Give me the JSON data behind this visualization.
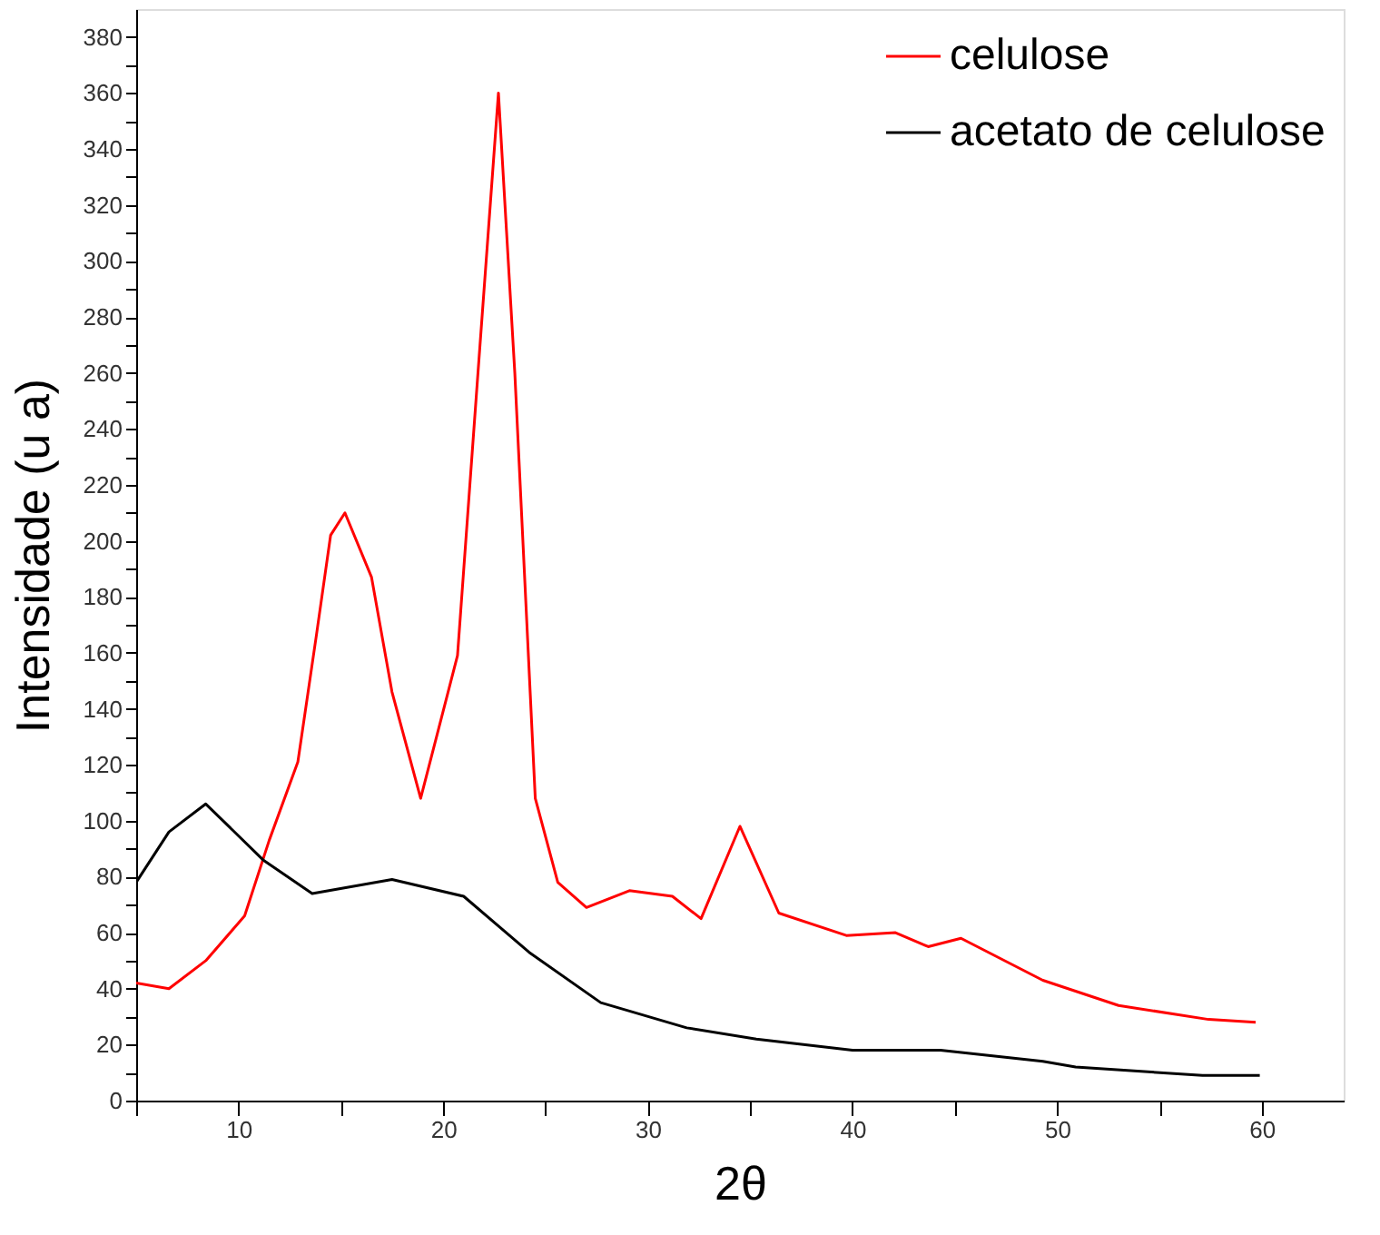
{
  "chart_data": {
    "type": "line",
    "xlabel": "2θ",
    "ylabel": "Intensidade (u a)",
    "xlim": [
      5,
      64
    ],
    "ylim": [
      0,
      390
    ],
    "xticks": [
      {
        "value": 5,
        "label": null
      },
      10,
      {
        "value": 15,
        "label": null
      },
      20,
      {
        "value": 25,
        "label": null
      },
      30,
      {
        "value": 35,
        "label": null
      },
      40,
      {
        "value": 45,
        "label": null
      },
      50,
      {
        "value": 55,
        "label": null
      },
      60
    ],
    "yticks": [
      0,
      {
        "value": 10,
        "label": null
      },
      20,
      {
        "value": 30,
        "label": null
      },
      40,
      {
        "value": 50,
        "label": null
      },
      60,
      {
        "value": 70,
        "label": null
      },
      80,
      {
        "value": 90,
        "label": null
      },
      100,
      {
        "value": 110,
        "label": null
      },
      120,
      {
        "value": 130,
        "label": null
      },
      140,
      {
        "value": 150,
        "label": null
      },
      160,
      {
        "value": 170,
        "label": null
      },
      180,
      {
        "value": 190,
        "label": null
      },
      200,
      {
        "value": 210,
        "label": null
      },
      220,
      {
        "value": 230,
        "label": null
      },
      240,
      {
        "value": 250,
        "label": null
      },
      260,
      {
        "value": 270,
        "label": null
      },
      280,
      {
        "value": 290,
        "label": null
      },
      300,
      {
        "value": 310,
        "label": null
      },
      320,
      {
        "value": 330,
        "label": null
      },
      340,
      {
        "value": 350,
        "label": null
      },
      360,
      {
        "value": 370,
        "label": null
      },
      380
    ],
    "grid": false,
    "legend": "top right",
    "marker": "none",
    "line_style": "solid",
    "series": [
      {
        "name": "celulose",
        "color": "#ff0000",
        "x": [
          5,
          6.6,
          8.4,
          10.3,
          11.5,
          12.9,
          13.8,
          14.5,
          15.2,
          16.5,
          17.5,
          18.9,
          20.7,
          21.7,
          22.7,
          23.5,
          24.5,
          25.6,
          27.0,
          29.1,
          31.2,
          32.6,
          34.5,
          36.4,
          39.7,
          42.1,
          43.7,
          45.3,
          49.3,
          53.0,
          57.4,
          59.7
        ],
        "values": [
          42,
          40,
          50,
          66,
          93,
          121,
          166,
          202,
          210,
          187,
          146,
          108,
          159,
          260,
          360,
          260,
          108,
          78,
          69,
          75,
          73,
          65,
          98,
          67,
          59,
          60,
          55,
          58,
          43,
          34,
          29,
          28
        ]
      },
      {
        "name": "acetato de celulose",
        "color": "#000000",
        "x": [
          5,
          6.6,
          8.4,
          11.2,
          13.6,
          17.5,
          21.0,
          24.2,
          27.7,
          31.9,
          35.3,
          40.0,
          41.2,
          44.3,
          49.3,
          50.9,
          57.1,
          59.9
        ],
        "values": [
          78,
          96,
          106,
          86,
          74,
          79,
          73,
          53,
          35,
          26,
          22,
          18,
          18,
          18,
          14,
          12,
          9,
          9
        ]
      }
    ]
  }
}
